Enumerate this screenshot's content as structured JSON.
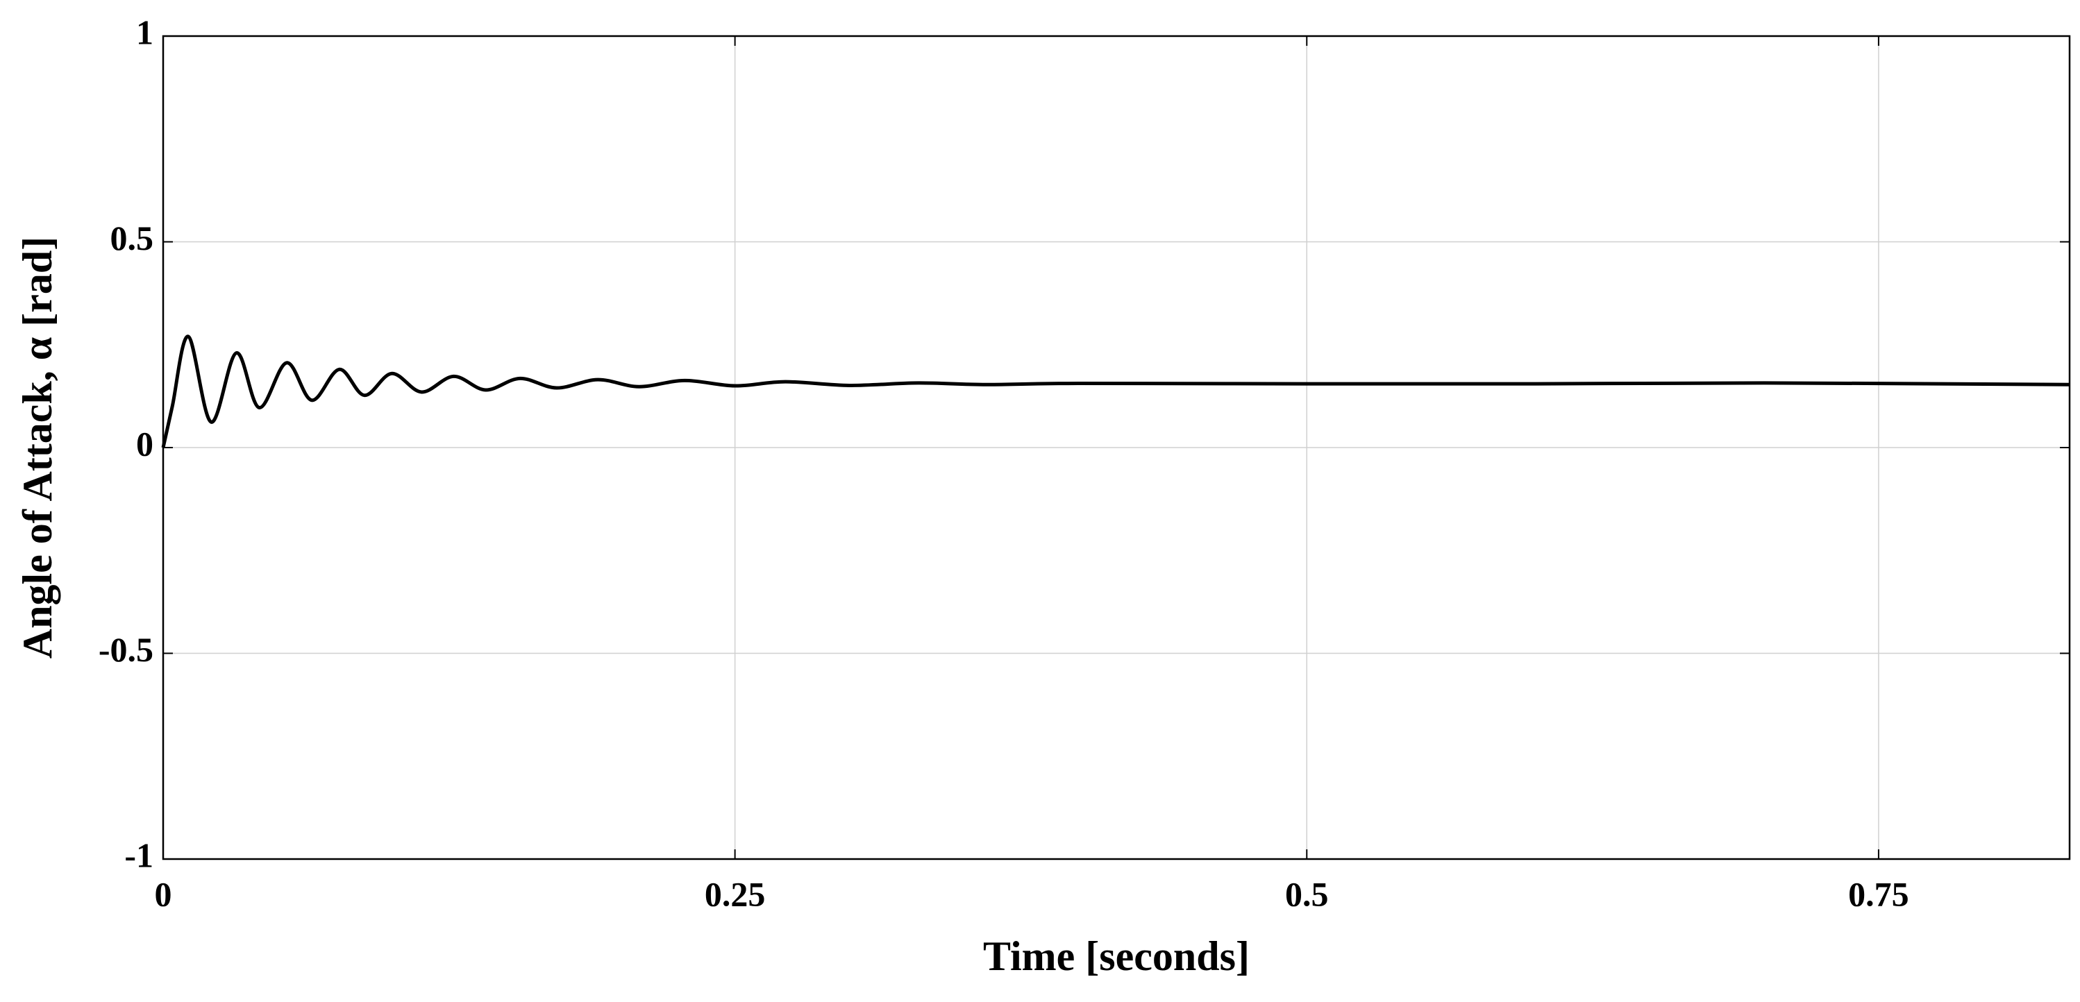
{
  "chart_data": {
    "type": "line",
    "x_label": "Time [seconds]",
    "y_label": "Angle of Attack, α [rad]",
    "xlim": [
      0,
      0.8335
    ],
    "ylim": [
      -1,
      1
    ],
    "xticks": [
      0,
      0.25,
      0.5,
      0.75
    ],
    "yticks": [
      -1,
      -0.5,
      0,
      0.5,
      1
    ],
    "grid": true,
    "series": [
      {
        "color": "#000000",
        "x": [
          0,
          0.004,
          0.011,
          0.021,
          0.032,
          0.042,
          0.054,
          0.065,
          0.077,
          0.088,
          0.1,
          0.113,
          0.127,
          0.141,
          0.156,
          0.172,
          0.19,
          0.208,
          0.228,
          0.25,
          0.272,
          0.3,
          0.33,
          0.36,
          0.4,
          0.5,
          0.6,
          0.7,
          0.8335
        ],
        "values": [
          0,
          0.1,
          0.27,
          0.062,
          0.23,
          0.097,
          0.206,
          0.115,
          0.19,
          0.127,
          0.18,
          0.135,
          0.173,
          0.14,
          0.168,
          0.145,
          0.165,
          0.148,
          0.163,
          0.15,
          0.16,
          0.151,
          0.157,
          0.153,
          0.156,
          0.155,
          0.155,
          0.157,
          0.153
        ]
      }
    ]
  }
}
